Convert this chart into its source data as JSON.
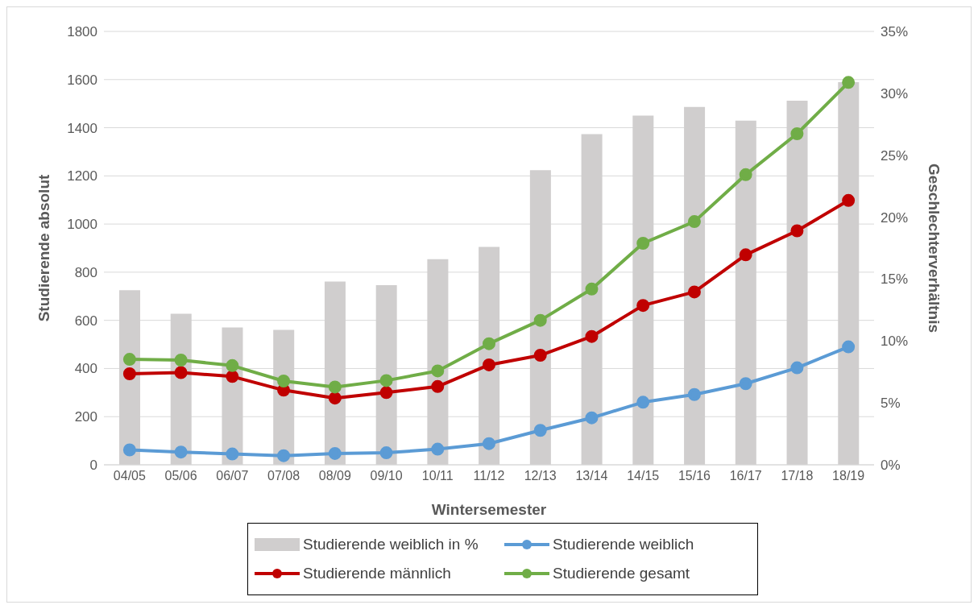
{
  "chart_data": {
    "type": "line",
    "xlabel": "Wintersemester",
    "ylabel": "Studierende absolut",
    "y2label": "Geschlechterverhältnis",
    "categories": [
      "04/05",
      "05/06",
      "06/07",
      "07/08",
      "08/09",
      "09/10",
      "10/11",
      "11/12",
      "12/13",
      "13/14",
      "14/15",
      "15/16",
      "16/17",
      "17/18",
      "18/19"
    ],
    "series": [
      {
        "name": "Studierende weiblich in %",
        "type": "bar",
        "axis": "y2",
        "color": "#d0cece",
        "values": [
          14.1,
          12.2,
          11.1,
          10.9,
          14.8,
          14.5,
          16.6,
          17.6,
          23.8,
          26.7,
          28.2,
          28.9,
          27.8,
          29.4,
          30.9
        ]
      },
      {
        "name": "Studierende weiblich",
        "color": "#5b9bd5",
        "values": [
          62,
          53,
          45,
          38,
          47,
          50,
          65,
          88,
          143,
          195,
          260,
          292,
          337,
          403,
          490
        ]
      },
      {
        "name": "Studierende männlich",
        "color": "#c00000",
        "values": [
          378,
          383,
          367,
          310,
          277,
          300,
          325,
          415,
          455,
          533,
          662,
          718,
          872,
          972,
          1098
        ]
      },
      {
        "name": "Studierende gesamt",
        "color": "#70ad47",
        "values": [
          438,
          435,
          412,
          348,
          323,
          350,
          390,
          503,
          600,
          730,
          920,
          1010,
          1205,
          1375,
          1588
        ]
      }
    ],
    "ylim": [
      0,
      1800
    ],
    "yticks": [
      0,
      200,
      400,
      600,
      800,
      1000,
      1200,
      1400,
      1600,
      1800
    ],
    "y2lim": [
      0,
      35
    ],
    "y2ticks": [
      {
        "value": 0,
        "label": "0%"
      },
      {
        "value": 5,
        "label": "5%"
      },
      {
        "value": 10,
        "label": "10%"
      },
      {
        "value": 15,
        "label": "15%"
      },
      {
        "value": 20,
        "label": "20%"
      },
      {
        "value": 25,
        "label": "25%"
      },
      {
        "value": 30,
        "label": "30%"
      },
      {
        "value": 35,
        "label": "35%"
      }
    ],
    "grid": "y",
    "legend": "bottom",
    "marker": "circle"
  }
}
